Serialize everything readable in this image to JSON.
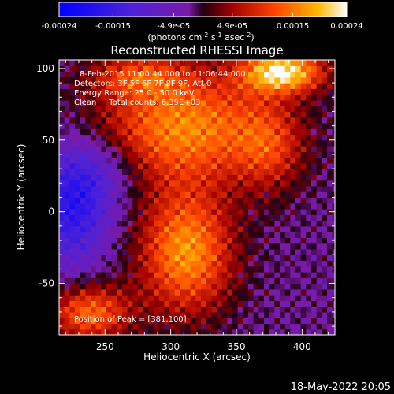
{
  "chart_data": {
    "type": "heatmap",
    "title": "Reconstructed RHESSI Image",
    "xlabel": "Heliocentric X (arcsec)",
    "ylabel": "Heliocentric Y (arcsec)",
    "xlim": [
      215,
      425
    ],
    "ylim": [
      -86,
      106
    ],
    "xticks": [
      250,
      300,
      350,
      400
    ],
    "yticks": [
      -50,
      0,
      50,
      100
    ],
    "colorbar": {
      "range": [
        -0.00024,
        0.00024
      ],
      "ticks": [
        "-0.00024",
        "-0.00015",
        "-4.9e-05",
        "4.9e-05",
        "0.00015",
        "0.00024"
      ],
      "label_main": "(photons cm",
      "label_sup1": "-2",
      "label_mid": " s",
      "label_sup2": "-1",
      "label_mid2": " asec",
      "label_sup3": "-2",
      "label_end": ")"
    },
    "annotations": {
      "time": "8-Feb-2015 11:00:44.000 to 11:06:44.000",
      "detectors": "Detectors: 3F 5F 6F 7F 8F 9F, Att 0",
      "energy": "Energy Range: 25.0 - 50.0 keV",
      "clean": "Clean     Total counts: 6.39E+03",
      "peak": "Position of Peak = [381,100]"
    },
    "footer_date": "18-May-2022 20:05",
    "sources": [
      {
        "x": 310,
        "y": 60,
        "sx": 48,
        "sy": 28,
        "amp": 0.00018
      },
      {
        "x": 385,
        "y": 98,
        "sx": 22,
        "sy": 10,
        "amp": 0.00024
      },
      {
        "x": 312,
        "y": -28,
        "sx": 25,
        "sy": 30,
        "amp": 0.00019
      },
      {
        "x": 238,
        "y": -70,
        "sx": 22,
        "sy": 14,
        "amp": 0.00016
      },
      {
        "x": 375,
        "y": 45,
        "sx": 18,
        "sy": 22,
        "amp": 9e-05
      },
      {
        "x": 275,
        "y": 95,
        "sx": 25,
        "sy": 10,
        "amp": 0.0001
      }
    ],
    "negative_sources": [
      {
        "x": 225,
        "y": 5,
        "sx": 20,
        "sy": 30,
        "amp": 0.00015
      },
      {
        "x": 250,
        "y": 30,
        "sx": 20,
        "sy": 18,
        "amp": 6e-05
      }
    ]
  }
}
